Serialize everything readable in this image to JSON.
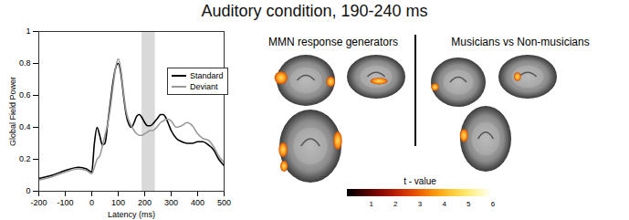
{
  "title": "Auditory condition, 190-240 ms",
  "chart_data": {
    "type": "line",
    "x_label": "Latency (ms)",
    "y_label": "Global Field Power",
    "x": [
      -200,
      -150,
      -100,
      -50,
      -20,
      0,
      10,
      20,
      30,
      40,
      50,
      60,
      70,
      80,
      90,
      100,
      110,
      120,
      130,
      140,
      150,
      160,
      170,
      180,
      190,
      200,
      210,
      220,
      230,
      240,
      250,
      260,
      270,
      280,
      290,
      300,
      320,
      340,
      360,
      380,
      400,
      420,
      440,
      460,
      480,
      500
    ],
    "series": [
      {
        "name": "Standard",
        "color": "#000000",
        "line_style": "solid",
        "values": [
          0.08,
          0.1,
          0.13,
          0.15,
          0.14,
          0.12,
          0.3,
          0.4,
          0.35,
          0.29,
          0.3,
          0.42,
          0.55,
          0.68,
          0.77,
          0.8,
          0.74,
          0.6,
          0.48,
          0.42,
          0.4,
          0.43,
          0.47,
          0.48,
          0.46,
          0.43,
          0.41,
          0.41,
          0.42,
          0.44,
          0.46,
          0.48,
          0.48,
          0.46,
          0.42,
          0.38,
          0.33,
          0.31,
          0.3,
          0.3,
          0.31,
          0.31,
          0.29,
          0.26,
          0.2,
          0.16
        ]
      },
      {
        "name": "Deviant",
        "color": "#999999",
        "line_style": "solid",
        "values": [
          0.07,
          0.09,
          0.12,
          0.14,
          0.13,
          0.11,
          0.15,
          0.2,
          0.22,
          0.28,
          0.35,
          0.42,
          0.52,
          0.65,
          0.77,
          0.83,
          0.76,
          0.62,
          0.5,
          0.44,
          0.41,
          0.38,
          0.36,
          0.35,
          0.35,
          0.36,
          0.37,
          0.38,
          0.38,
          0.39,
          0.41,
          0.43,
          0.44,
          0.45,
          0.45,
          0.44,
          0.4,
          0.41,
          0.43,
          0.41,
          0.36,
          0.33,
          0.32,
          0.28,
          0.22,
          0.18
        ]
      }
    ],
    "highlight": {
      "x1": 190,
      "x2": 240
    },
    "xlim": [
      -200,
      500
    ],
    "xticks": [
      -200,
      -100,
      0,
      100,
      200,
      300,
      400,
      500
    ],
    "ylim": [
      0,
      1
    ],
    "yticks": [
      0,
      0.2,
      0.4,
      0.6,
      0.8,
      1
    ],
    "legend": "upper right"
  },
  "brain_maps": {
    "panels": [
      {
        "title": "MMN response generators"
      },
      {
        "title": "Musicians vs Non-musicians"
      }
    ],
    "colorbar": {
      "label": "t - value",
      "range": [
        0,
        6
      ],
      "ticks": [
        1,
        2,
        3,
        4,
        5,
        6
      ]
    }
  }
}
